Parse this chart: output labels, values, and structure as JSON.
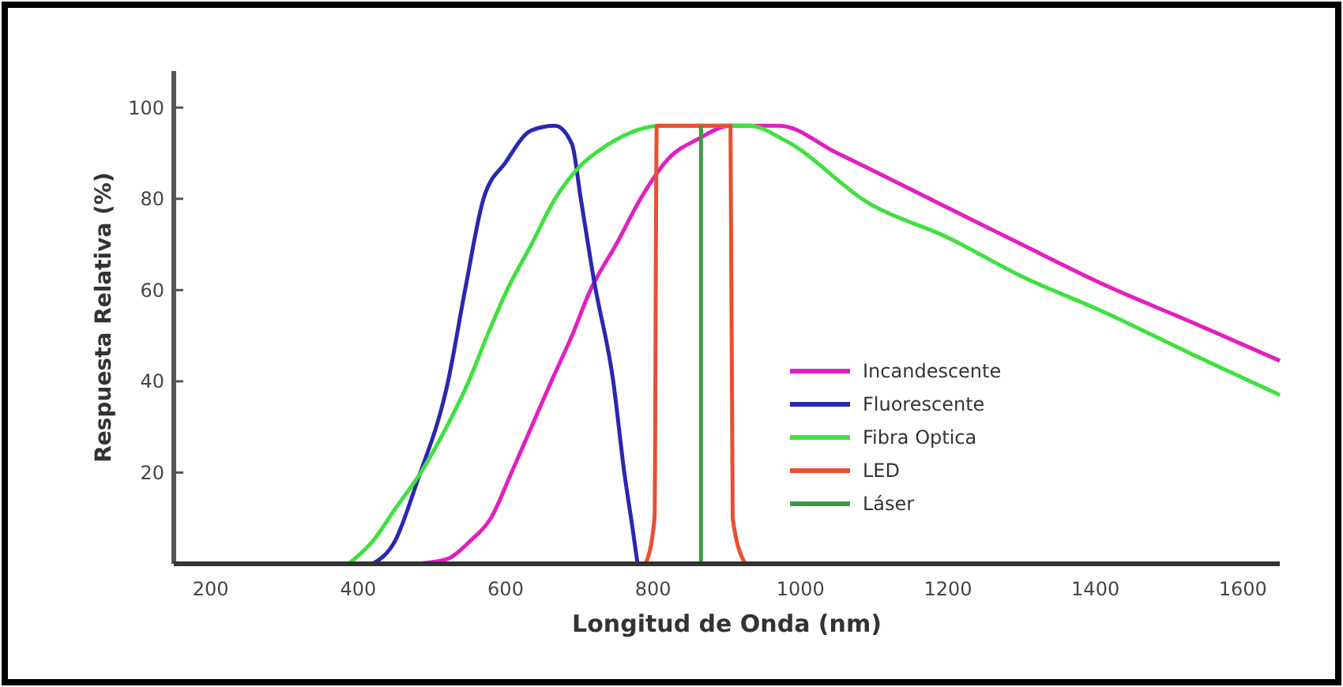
{
  "chart_data": {
    "type": "line",
    "xlabel": "Longitud de Onda (nm)",
    "ylabel": "Respuesta Relativa (%)",
    "xlim": [
      150,
      1650
    ],
    "xticks": [
      200,
      400,
      600,
      800,
      1000,
      1200,
      1400,
      1600
    ],
    "ylim": [
      0,
      108
    ],
    "yticks": [
      20,
      40,
      60,
      80,
      100
    ],
    "grid": false,
    "legend": "right",
    "marker": "none",
    "line_style": "solid",
    "series": [
      {
        "name": "Incandescente",
        "color": "#e020c0",
        "x": [
          480,
          520,
          552,
          580,
          608,
          635,
          662,
          690,
          715,
          750,
          783,
          822,
          860,
          905,
          971,
          1050,
          1200,
          1300,
          1414,
          1530,
          1650
        ],
        "values": [
          0,
          1,
          5,
          10,
          20,
          30,
          40,
          50,
          60,
          70,
          80,
          89,
          93,
          96,
          96,
          90,
          78,
          70,
          61,
          53,
          44.5
        ]
      },
      {
        "name": "Fluorescente",
        "color": "#2828b0",
        "x": [
          420,
          450,
          480,
          522,
          545,
          570,
          600,
          635,
          667,
          690,
          702,
          720,
          746,
          761,
          772,
          779
        ],
        "values": [
          0,
          5,
          18,
          40,
          60,
          80,
          88,
          95,
          96,
          92,
          80,
          62,
          40,
          20,
          8,
          0
        ]
      },
      {
        "name": "Fibra Optica",
        "color": "#40e040",
        "x": [
          387,
          420,
          450,
          485,
          520,
          550,
          575,
          602,
          635,
          667,
          700,
          740,
          811,
          870,
          930,
          980,
          1093,
          1200,
          1300,
          1414,
          1530,
          1650
        ],
        "values": [
          0,
          5,
          12,
          20,
          30,
          40,
          50,
          60,
          70,
          80,
          87,
          92,
          96,
          96,
          96,
          92.7,
          79,
          71.5,
          63,
          55,
          46,
          37
        ]
      },
      {
        "name": "LED",
        "color": "#e85030",
        "x": [
          790,
          802,
          805,
          905,
          908,
          925
        ],
        "values": [
          0,
          10,
          96,
          96,
          10,
          0
        ]
      },
      {
        "name": "Láser",
        "color": "#3a9a40",
        "x": [
          865,
          865
        ],
        "values": [
          0,
          96
        ]
      }
    ]
  }
}
